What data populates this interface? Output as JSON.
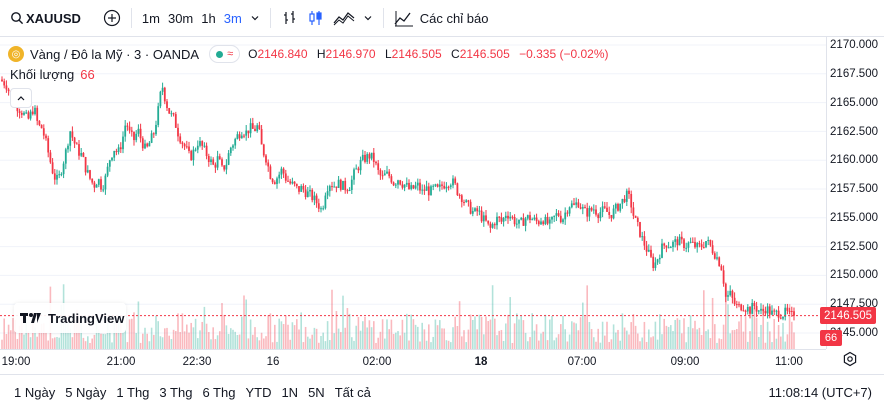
{
  "toolbar": {
    "symbol": "XAUUSD",
    "intervals": [
      "1m",
      "30m",
      "1h",
      "3m"
    ],
    "active_interval": "3m",
    "indicators_label": "Các chỉ báo"
  },
  "legend": {
    "instrument": "Vàng / Đô la Mỹ · 3 · OANDA",
    "o_key": "O",
    "o_val": "2146.840",
    "h_key": "H",
    "h_val": "2146.970",
    "l_key": "L",
    "l_val": "2146.505",
    "c_key": "C",
    "c_val": "2146.505",
    "change": "−0.335 (−0.02%)",
    "volume_label": "Khối lượng",
    "volume_value": "66"
  },
  "watermark": "TradingView",
  "price_scale": [
    "2170.000",
    "2167.500",
    "2165.000",
    "2162.500",
    "2160.000",
    "2157.500",
    "2155.000",
    "2152.500",
    "2150.000",
    "2147.500",
    "2145.000"
  ],
  "last_price_label": "2146.505",
  "last_volume_label": "66",
  "time_scale": [
    "19:00",
    "21:00",
    "22:30",
    "16",
    "02:00",
    "18",
    "07:00",
    "09:00",
    "11:00"
  ],
  "bottom": {
    "ranges": [
      "1 Ngày",
      "5 Ngày",
      "1 Thg",
      "3 Thg",
      "6 Thg",
      "YTD",
      "1N",
      "5N",
      "Tất cả"
    ],
    "clock": "11:08:14 (UTC+7)"
  },
  "colors": {
    "up": "#22ab94",
    "down": "#f23645",
    "accent": "#2962ff"
  },
  "chart_data": {
    "type": "candlestick",
    "ylim": [
      2145.0,
      2170.0
    ],
    "last_price": 2146.505,
    "close_path": [
      [
        0,
        2167.0
      ],
      [
        6,
        2166.6
      ],
      [
        10,
        2165.8
      ],
      [
        16,
        2164.8
      ],
      [
        22,
        2164.2
      ],
      [
        28,
        2163.5
      ],
      [
        34,
        2164.6
      ],
      [
        38,
        2163.0
      ],
      [
        42,
        2162.8
      ],
      [
        46,
        2161.5
      ],
      [
        50,
        2160.0
      ],
      [
        54,
        2158.6
      ],
      [
        58,
        2158.2
      ],
      [
        62,
        2159.4
      ],
      [
        66,
        2160.8
      ],
      [
        70,
        2162.6
      ],
      [
        74,
        2161.6
      ],
      [
        78,
        2160.8
      ],
      [
        82,
        2160.4
      ],
      [
        86,
        2159.2
      ],
      [
        90,
        2158.4
      ],
      [
        94,
        2157.8
      ],
      [
        98,
        2158.4
      ],
      [
        102,
        2157.6
      ],
      [
        106,
        2158.6
      ],
      [
        110,
        2160.2
      ],
      [
        114,
        2161.0
      ],
      [
        118,
        2160.6
      ],
      [
        122,
        2161.6
      ],
      [
        126,
        2163.4
      ],
      [
        130,
        2162.2
      ],
      [
        134,
        2161.8
      ],
      [
        138,
        2162.6
      ],
      [
        142,
        2161.6
      ],
      [
        146,
        2160.8
      ],
      [
        150,
        2161.6
      ],
      [
        154,
        2162.4
      ],
      [
        158,
        2164.2
      ],
      [
        162,
        2166.6
      ],
      [
        166,
        2165.0
      ],
      [
        170,
        2164.0
      ],
      [
        174,
        2163.6
      ],
      [
        178,
        2162.4
      ],
      [
        182,
        2161.6
      ],
      [
        186,
        2161.0
      ],
      [
        190,
        2160.2
      ],
      [
        194,
        2160.8
      ],
      [
        198,
        2161.6
      ],
      [
        202,
        2161.2
      ],
      [
        206,
        2160.6
      ],
      [
        210,
        2160.0
      ],
      [
        214,
        2159.4
      ],
      [
        218,
        2160.2
      ],
      [
        222,
        2159.2
      ],
      [
        226,
        2159.6
      ],
      [
        230,
        2161.0
      ],
      [
        234,
        2161.6
      ],
      [
        238,
        2162.2
      ],
      [
        242,
        2162.6
      ],
      [
        246,
        2162.4
      ],
      [
        250,
        2162.8
      ],
      [
        254,
        2162.6
      ],
      [
        258,
        2163.0
      ],
      [
        262,
        2161.0
      ],
      [
        266,
        2160.2
      ],
      [
        270,
        2158.8
      ],
      [
        274,
        2158.2
      ],
      [
        278,
        2158.6
      ],
      [
        282,
        2159.2
      ],
      [
        286,
        2158.4
      ],
      [
        290,
        2158.0
      ],
      [
        294,
        2157.8
      ],
      [
        298,
        2157.4
      ],
      [
        302,
        2157.6
      ],
      [
        306,
        2157.2
      ],
      [
        310,
        2157.0
      ],
      [
        314,
        2156.6
      ],
      [
        318,
        2156.2
      ],
      [
        322,
        2155.6
      ],
      [
        326,
        2157.6
      ],
      [
        330,
        2158.0
      ],
      [
        334,
        2157.8
      ],
      [
        338,
        2158.0
      ],
      [
        342,
        2157.8
      ],
      [
        346,
        2157.6
      ],
      [
        350,
        2157.8
      ],
      [
        354,
        2158.8
      ],
      [
        358,
        2159.4
      ],
      [
        362,
        2160.0
      ],
      [
        366,
        2160.2
      ],
      [
        370,
        2160.4
      ],
      [
        374,
        2160.0
      ],
      [
        378,
        2159.0
      ],
      [
        382,
        2158.4
      ],
      [
        386,
        2158.8
      ],
      [
        390,
        2158.6
      ],
      [
        394,
        2158.0
      ],
      [
        398,
        2158.4
      ],
      [
        402,
        2158.0
      ],
      [
        406,
        2157.8
      ],
      [
        410,
        2157.4
      ],
      [
        414,
        2157.6
      ],
      [
        418,
        2157.8
      ],
      [
        422,
        2157.2
      ],
      [
        426,
        2157.6
      ],
      [
        430,
        2157.2
      ],
      [
        434,
        2157.6
      ],
      [
        438,
        2157.4
      ],
      [
        442,
        2157.8
      ],
      [
        446,
        2158.0
      ],
      [
        450,
        2158.2
      ],
      [
        454,
        2158.0
      ],
      [
        458,
        2157.2
      ],
      [
        462,
        2156.8
      ],
      [
        466,
        2156.2
      ],
      [
        470,
        2155.8
      ],
      [
        474,
        2155.4
      ],
      [
        478,
        2155.6
      ],
      [
        482,
        2155.0
      ],
      [
        486,
        2154.6
      ],
      [
        490,
        2154.0
      ],
      [
        494,
        2154.6
      ],
      [
        498,
        2155.0
      ],
      [
        502,
        2154.6
      ],
      [
        506,
        2155.4
      ],
      [
        510,
        2155.2
      ],
      [
        514,
        2154.8
      ],
      [
        518,
        2154.4
      ],
      [
        522,
        2154.6
      ],
      [
        526,
        2155.0
      ],
      [
        530,
        2155.0
      ],
      [
        534,
        2154.8
      ],
      [
        538,
        2154.6
      ],
      [
        542,
        2155.0
      ],
      [
        546,
        2154.6
      ],
      [
        550,
        2154.4
      ],
      [
        554,
        2155.0
      ],
      [
        558,
        2155.4
      ],
      [
        562,
        2154.8
      ],
      [
        566,
        2155.6
      ],
      [
        570,
        2156.2
      ],
      [
        574,
        2156.0
      ],
      [
        578,
        2156.4
      ],
      [
        582,
        2155.8
      ],
      [
        586,
        2155.4
      ],
      [
        590,
        2155.6
      ],
      [
        594,
        2155.8
      ],
      [
        598,
        2155.4
      ],
      [
        602,
        2155.6
      ],
      [
        606,
        2155.6
      ],
      [
        610,
        2155.2
      ],
      [
        614,
        2155.6
      ],
      [
        618,
        2156.0
      ],
      [
        622,
        2156.4
      ],
      [
        626,
        2157.0
      ],
      [
        630,
        2156.6
      ],
      [
        634,
        2155.0
      ],
      [
        638,
        2154.2
      ],
      [
        642,
        2153.2
      ],
      [
        646,
        2152.4
      ],
      [
        650,
        2151.6
      ],
      [
        654,
        2150.8
      ],
      [
        658,
        2151.6
      ],
      [
        662,
        2152.4
      ],
      [
        666,
        2152.8
      ],
      [
        670,
        2152.6
      ],
      [
        674,
        2152.8
      ],
      [
        678,
        2153.0
      ],
      [
        682,
        2152.8
      ],
      [
        686,
        2152.6
      ],
      [
        690,
        2152.8
      ],
      [
        694,
        2152.6
      ],
      [
        698,
        2152.4
      ],
      [
        702,
        2152.6
      ],
      [
        706,
        2153.0
      ],
      [
        710,
        2152.6
      ],
      [
        714,
        2152.0
      ],
      [
        718,
        2151.4
      ],
      [
        722,
        2150.6
      ],
      [
        726,
        2148.0
      ],
      [
        730,
        2148.4
      ],
      [
        734,
        2147.6
      ],
      [
        738,
        2147.2
      ],
      [
        742,
        2147.4
      ],
      [
        746,
        2147.2
      ],
      [
        750,
        2147.0
      ],
      [
        754,
        2147.4
      ],
      [
        758,
        2147.0
      ],
      [
        762,
        2146.8
      ],
      [
        766,
        2147.2
      ],
      [
        770,
        2146.8
      ],
      [
        774,
        2146.6
      ],
      [
        778,
        2146.8
      ],
      [
        782,
        2146.6
      ],
      [
        786,
        2146.8
      ],
      [
        790,
        2146.5
      ],
      [
        794,
        2146.5
      ]
    ]
  }
}
